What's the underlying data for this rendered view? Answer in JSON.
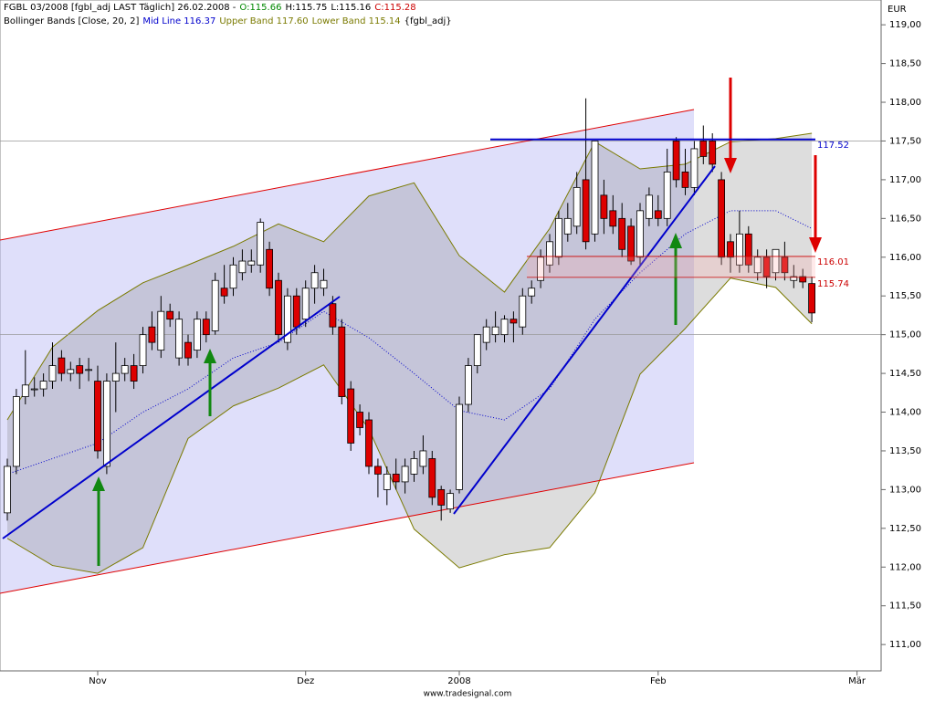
{
  "chart_data": {
    "type": "candlestick",
    "title_parts": [
      {
        "text": "FGBL 03/2008 [fgbl_adj LAST Täglich] 26.02.2008 -",
        "color": "#000000"
      },
      {
        "text": "O:115.66",
        "color": "#008800"
      },
      {
        "text": "H:115.75",
        "color": "#000000"
      },
      {
        "text": "L:115.16",
        "color": "#000000"
      },
      {
        "text": "C:115.28",
        "color": "#cc0000"
      }
    ],
    "legend_parts": [
      {
        "text": "Bollinger Bands [Close, 20, 2]",
        "color": "#000000"
      },
      {
        "text": "Mid Line 116.37",
        "color": "#0000cc"
      },
      {
        "text": "Upper Band 117.60",
        "color": "#7a7a00"
      },
      {
        "text": "Lower Band 115.14",
        "color": "#7a7a00"
      },
      {
        "text": "{fgbl_adj}",
        "color": "#000000"
      }
    ],
    "y_unit": "EUR",
    "footer": "www.tradesignal.com",
    "categories": [
      null,
      null,
      null,
      null,
      null,
      null,
      null,
      null,
      null,
      null,
      "Nov",
      null,
      null,
      null,
      null,
      null,
      null,
      null,
      null,
      null,
      null,
      null,
      null,
      null,
      null,
      null,
      null,
      null,
      null,
      null,
      null,
      null,
      null,
      "Dez",
      null,
      null,
      null,
      null,
      null,
      null,
      null,
      null,
      null,
      null,
      null,
      null,
      null,
      null,
      null,
      null,
      "2008",
      null,
      null,
      null,
      null,
      null,
      null,
      null,
      null,
      null,
      null,
      null,
      null,
      null,
      null,
      null,
      null,
      null,
      null,
      null,
      null,
      null,
      "Feb",
      null,
      null,
      null,
      null,
      null,
      null,
      null,
      null,
      null,
      null,
      null,
      null,
      null,
      null,
      null,
      null,
      null,
      null,
      null,
      null,
      null,
      "Mär",
      null
    ],
    "open": [
      112.7,
      113.3,
      114.2,
      114.3,
      114.3,
      114.4,
      114.7,
      114.5,
      114.6,
      114.55,
      114.4,
      113.3,
      114.4,
      114.5,
      114.6,
      114.6,
      115.1,
      114.8,
      115.3,
      114.7,
      114.9,
      114.8,
      115.2,
      115.05,
      115.6,
      115.6,
      115.8,
      115.9,
      115.9,
      116.1,
      115.7,
      114.9,
      115.5,
      115.2,
      115.6,
      115.6,
      115.4,
      115.1,
      114.3,
      114.0,
      113.9,
      113.3,
      113.0,
      113.2,
      113.1,
      113.2,
      113.3,
      113.4,
      113.0,
      112.75,
      113.0,
      114.1,
      114.6,
      114.9,
      115.0,
      115.0,
      115.2,
      115.1,
      115.5,
      115.7,
      115.9,
      116.0,
      116.3,
      116.4,
      117.0,
      116.3,
      116.8,
      116.6,
      116.5,
      116.4,
      116.0,
      116.5,
      116.6,
      116.5,
      117.5,
      117.1,
      116.9,
      117.5,
      117.5,
      117.0,
      116.2,
      115.9,
      116.3,
      115.8,
      116.0,
      115.8,
      116.0,
      115.7,
      115.75,
      115.66,
      null,
      null,
      null,
      null,
      null,
      null
    ],
    "high": [
      113.4,
      114.3,
      114.8,
      114.45,
      114.5,
      114.9,
      114.8,
      114.65,
      114.7,
      114.7,
      114.6,
      114.5,
      114.9,
      114.7,
      114.75,
      115.1,
      115.3,
      115.5,
      115.4,
      115.3,
      115.0,
      115.3,
      115.3,
      115.8,
      115.9,
      116.0,
      116.1,
      116.1,
      116.5,
      116.2,
      115.8,
      115.6,
      115.6,
      115.7,
      115.9,
      115.85,
      115.5,
      115.2,
      114.4,
      114.1,
      114.0,
      113.4,
      113.3,
      113.4,
      113.4,
      113.5,
      113.7,
      113.5,
      113.05,
      113.0,
      114.2,
      114.7,
      115.0,
      115.2,
      115.3,
      115.25,
      115.3,
      115.6,
      115.7,
      116.1,
      116.3,
      116.6,
      116.7,
      117.1,
      118.05,
      117.5,
      117.0,
      116.8,
      116.7,
      116.5,
      116.7,
      116.9,
      116.8,
      117.4,
      117.55,
      117.4,
      117.5,
      117.7,
      117.6,
      117.1,
      116.3,
      116.6,
      116.4,
      116.1,
      116.1,
      116.1,
      116.2,
      115.9,
      115.85,
      115.75,
      null,
      null,
      null,
      null,
      null,
      null
    ],
    "low": [
      112.6,
      113.2,
      114.1,
      114.2,
      114.2,
      114.3,
      114.4,
      114.4,
      114.3,
      114.4,
      113.4,
      113.2,
      114.0,
      114.4,
      114.3,
      114.5,
      114.8,
      114.7,
      115.1,
      114.6,
      114.6,
      114.7,
      114.9,
      115.0,
      115.4,
      115.5,
      115.7,
      115.8,
      115.8,
      115.5,
      114.9,
      114.8,
      115.0,
      115.1,
      115.4,
      115.5,
      115.0,
      114.1,
      113.5,
      113.7,
      113.2,
      112.9,
      112.8,
      113.0,
      112.95,
      113.1,
      113.2,
      112.8,
      112.6,
      112.7,
      112.95,
      114.0,
      114.5,
      114.8,
      114.9,
      114.9,
      114.9,
      115.0,
      115.4,
      115.6,
      115.8,
      115.9,
      116.2,
      116.3,
      116.1,
      116.2,
      116.3,
      116.3,
      116.0,
      115.9,
      115.9,
      116.4,
      116.4,
      116.4,
      116.9,
      116.8,
      116.8,
      117.2,
      117.1,
      115.9,
      115.8,
      115.8,
      115.8,
      115.7,
      115.6,
      115.7,
      115.7,
      115.6,
      115.6,
      115.16,
      null,
      null,
      null,
      null,
      null,
      null
    ],
    "close": [
      113.3,
      114.2,
      114.35,
      114.3,
      114.4,
      114.6,
      114.5,
      114.55,
      114.5,
      114.55,
      113.5,
      114.4,
      114.5,
      114.6,
      114.4,
      115.0,
      114.9,
      115.3,
      115.2,
      115.2,
      114.7,
      115.2,
      115.0,
      115.7,
      115.5,
      115.9,
      115.95,
      115.95,
      116.45,
      115.6,
      115.0,
      115.5,
      115.1,
      115.6,
      115.8,
      115.7,
      115.1,
      114.2,
      113.6,
      113.8,
      113.3,
      113.2,
      113.2,
      113.1,
      113.3,
      113.4,
      113.5,
      112.9,
      112.8,
      112.95,
      114.1,
      114.6,
      115.0,
      115.1,
      115.1,
      115.2,
      115.15,
      115.5,
      115.6,
      116.0,
      116.2,
      116.5,
      116.5,
      116.9,
      116.2,
      117.5,
      116.5,
      116.4,
      116.1,
      115.95,
      116.6,
      116.8,
      116.5,
      117.1,
      117.0,
      116.9,
      117.4,
      117.3,
      117.2,
      116.0,
      116.0,
      116.3,
      115.9,
      116.0,
      115.75,
      116.1,
      115.8,
      115.75,
      115.68,
      115.28,
      null,
      null,
      null,
      null,
      null,
      null
    ],
    "up_color": "#ffffff",
    "down_color": "#dd0000",
    "band_x": [
      0,
      5,
      10,
      15,
      20,
      25,
      30,
      35,
      40,
      45,
      50,
      55,
      60,
      65,
      70,
      75,
      80,
      85,
      89
    ],
    "bands": [
      {
        "color": "#0000cc",
        "values": [
          113.2,
          113.4,
          113.6,
          114.0,
          114.3,
          114.7,
          114.9,
          115.3,
          114.96,
          114.5,
          114.02,
          113.9,
          114.3,
          115.2,
          115.8,
          116.3,
          116.6,
          116.6,
          116.37
        ]
      },
      {
        "color": "#7a7a00",
        "values": [
          113.9,
          114.84,
          115.31,
          115.67,
          115.9,
          116.14,
          116.43,
          116.2,
          116.79,
          116.96,
          116.02,
          115.55,
          116.37,
          117.49,
          117.14,
          117.2,
          117.49,
          117.53,
          117.6
        ]
      },
      {
        "color": "#7a7a00",
        "values": [
          112.37,
          112.02,
          111.92,
          112.25,
          113.66,
          114.08,
          114.31,
          114.61,
          113.78,
          112.49,
          111.99,
          112.16,
          112.25,
          112.96,
          114.49,
          115.08,
          115.73,
          115.61,
          115.14
        ]
      }
    ],
    "levels": [
      {
        "value": 117.52,
        "color": "#0000cc"
      },
      {
        "value": 116.01,
        "color": "#cc0000"
      },
      {
        "value": 115.74,
        "color": "#cc0000"
      }
    ],
    "ylim": [
      110.66,
      119.32
    ],
    "yticks": [
      {
        "value": 111,
        "label": "111,00"
      },
      {
        "value": 111.5,
        "label": "111,50"
      },
      {
        "value": 112,
        "label": "112,00"
      },
      {
        "value": 112.5,
        "label": "112,50"
      },
      {
        "value": 113,
        "label": "113,00"
      },
      {
        "value": 113.5,
        "label": "113,50"
      },
      {
        "value": 114,
        "label": "114,00"
      },
      {
        "value": 114.5,
        "label": "114,50"
      },
      {
        "value": 115,
        "label": "115,00"
      },
      {
        "value": 115.5,
        "label": "115,50"
      },
      {
        "value": 116,
        "label": "116,00"
      },
      {
        "value": 116.5,
        "label": "116,50"
      },
      {
        "value": 117,
        "label": "117,00"
      },
      {
        "value": 117.5,
        "label": "117,50"
      },
      {
        "value": 118,
        "label": "118,00"
      },
      {
        "value": 118.5,
        "label": "118,50"
      },
      {
        "value": 119,
        "label": "119,00"
      }
    ],
    "ygrid": [
      115,
      117.5
    ]
  }
}
